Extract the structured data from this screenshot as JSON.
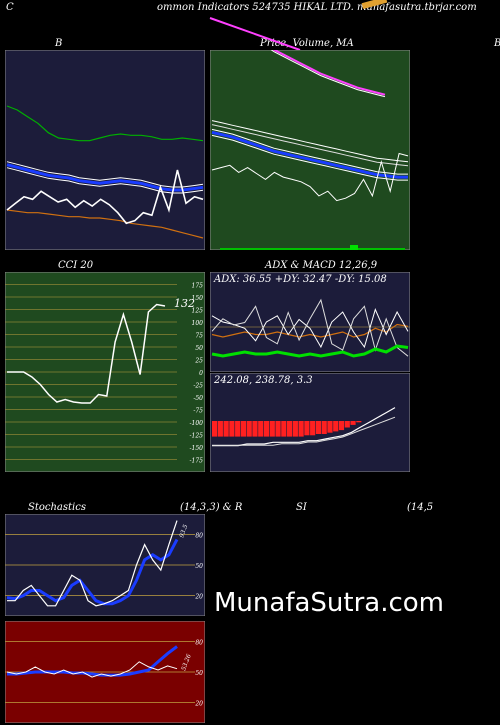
{
  "header": {
    "left": "C",
    "title": "ommon  Indicators 524735 HIKAL  LTD. munafasutra.tbrjar.com"
  },
  "panel_titles": {
    "bollinger": "B",
    "price_ma": "Price,  Volume,  MA",
    "right_edge": "B",
    "cci": "CCI 20",
    "adx_macd": "ADX  & MACD 12,26,9",
    "stoch_left": "Stochastics",
    "stoch_params": "(14,3,3) & R",
    "rsi_label": "SI",
    "rsi_params": "(14,5"
  },
  "readouts": {
    "cci_value": "132",
    "adx_text": "ADX: 36.55  +DY: 32.47  -DY: 15.08",
    "macd_text": "242.08,  238.78,  3.3",
    "stoch_value": "93.5",
    "rsi_value": "53.26"
  },
  "watermark": "MunafaSutra.com",
  "colors": {
    "bollinger_bg": "#1c1c3a",
    "price_bg": "#1f4a1f",
    "cci_bg": "#1f4a1f",
    "adx_bg": "#1c1c3a",
    "stoch_bg": "#1c1c3a",
    "rsi_bg": "#7a0000",
    "band_blue": "#1a3cff",
    "band_green": "#00b000",
    "band_orange": "#d07010",
    "price_magenta": "#ff40ff",
    "grid_orange": "#c0a040",
    "macd_red": "#ff2020"
  },
  "chart_data": [
    {
      "id": "bollinger",
      "type": "line",
      "series": [
        {
          "key": "upper",
          "values": [
            108,
            105,
            100,
            95,
            88,
            84,
            83,
            82,
            82,
            84,
            86,
            87,
            86,
            86,
            85,
            83,
            83,
            84,
            83,
            82
          ]
        },
        {
          "key": "middle",
          "values": [
            64,
            62,
            60,
            58,
            56,
            55,
            54,
            52,
            51,
            50,
            51,
            52,
            51,
            50,
            48,
            46,
            45,
            45,
            46,
            47
          ]
        },
        {
          "key": "lower",
          "values": [
            30,
            29,
            28,
            28,
            27,
            26,
            25,
            25,
            24,
            24,
            23,
            22,
            20,
            19,
            18,
            17,
            15,
            13,
            11,
            9
          ]
        },
        {
          "key": "price",
          "values": [
            30,
            35,
            40,
            38,
            44,
            40,
            36,
            38,
            32,
            37,
            33,
            38,
            34,
            28,
            20,
            22,
            28,
            26,
            47,
            30,
            60,
            35,
            40,
            38
          ]
        }
      ],
      "ylim": [
        0,
        150
      ]
    },
    {
      "id": "price_ma",
      "type": "line",
      "series": [
        {
          "key": "ema_short",
          "values": [
            100,
            98,
            96,
            93,
            90,
            87,
            84,
            82,
            80,
            78,
            76,
            74,
            72,
            70,
            68,
            66,
            64,
            63,
            62,
            62
          ]
        },
        {
          "key": "ema_long",
          "values": [
            110,
            108,
            106,
            104,
            102,
            100,
            98,
            96,
            94,
            92,
            90,
            88,
            86,
            84,
            82,
            80,
            78,
            77,
            76,
            75
          ]
        },
        {
          "key": "price",
          "values": [
            68,
            70,
            72,
            66,
            70,
            65,
            60,
            66,
            62,
            60,
            58,
            54,
            46,
            50,
            42,
            44,
            48,
            60,
            46,
            75,
            50,
            82,
            80
          ]
        },
        {
          "key": "long_ma",
          "values": [
            165,
            160,
            155,
            150,
            145,
            140,
            135,
            130,
            126,
            122,
            118,
            114,
            110,
            107,
            104,
            101,
            98,
            96,
            94,
            92
          ]
        }
      ],
      "ylim": [
        0,
        170
      ]
    },
    {
      "id": "cci",
      "type": "line",
      "values": [
        0,
        0,
        0,
        -10,
        -25,
        -45,
        -60,
        -55,
        -60,
        -62,
        -62,
        -45,
        -48,
        60,
        115,
        60,
        -5,
        120,
        135,
        132
      ],
      "yticks": [
        175,
        150,
        125,
        100,
        75,
        50,
        25,
        0,
        -25,
        -50,
        -75,
        -100,
        -125,
        -150,
        -175
      ],
      "ylim": [
        -200,
        200
      ]
    },
    {
      "id": "adx",
      "type": "line",
      "series": [
        {
          "key": "adx",
          "values": [
            30,
            28,
            30,
            32,
            30,
            30,
            32,
            30,
            28,
            30,
            28,
            30,
            32,
            28,
            30,
            35,
            32,
            38,
            36.55
          ]
        },
        {
          "key": "plus_di",
          "values": [
            45,
            40,
            38,
            35,
            25,
            40,
            45,
            30,
            42,
            35,
            20,
            40,
            48,
            32,
            20,
            50,
            30,
            48,
            32.47
          ]
        },
        {
          "key": "minus_di",
          "values": [
            35,
            45,
            40,
            42,
            55,
            30,
            25,
            50,
            28,
            45,
            60,
            25,
            20,
            45,
            55,
            20,
            45,
            22,
            15.08
          ]
        }
      ],
      "ylim": [
        0,
        80
      ]
    },
    {
      "id": "macd",
      "type": "bar",
      "values": [
        -12,
        -12,
        -12,
        -12,
        -12,
        -12,
        -12,
        -12,
        -12,
        -12,
        -12,
        -12,
        -12,
        -12,
        -12,
        -12,
        -11,
        -11,
        -10,
        -10,
        -9,
        -8,
        -7,
        -5,
        -3,
        -1
      ],
      "macd_line": [
        -14,
        -14,
        -14,
        -14,
        -13,
        -13,
        -13,
        -12,
        -12,
        -12,
        -12,
        -11,
        -11,
        -10,
        -9,
        -8,
        -6,
        -3,
        0,
        3,
        6,
        9
      ],
      "signal_line": [
        -12,
        -12,
        -12,
        -12,
        -12,
        -12,
        -12,
        -12,
        -11,
        -11,
        -11,
        -10,
        -10,
        -9,
        -8,
        -7,
        -5,
        -3,
        -1,
        1,
        3,
        5
      ]
    },
    {
      "id": "stochastics",
      "type": "line",
      "series": [
        {
          "key": "k",
          "values": [
            15,
            15,
            25,
            30,
            20,
            10,
            10,
            25,
            40,
            35,
            15,
            10,
            12,
            15,
            20,
            25,
            50,
            70,
            55,
            45,
            70,
            93.5
          ]
        },
        {
          "key": "d",
          "values": [
            18,
            17,
            20,
            25,
            25,
            20,
            15,
            18,
            30,
            35,
            25,
            15,
            12,
            12,
            15,
            20,
            35,
            55,
            60,
            55,
            60,
            75
          ]
        }
      ],
      "yticks": [
        80,
        50,
        20
      ],
      "ylim": [
        0,
        100
      ]
    },
    {
      "id": "rsi",
      "type": "line",
      "series": [
        {
          "key": "rsi",
          "values": [
            50,
            48,
            50,
            55,
            50,
            48,
            52,
            48,
            50,
            45,
            48,
            46,
            48,
            52,
            60,
            55,
            52,
            56,
            53.26
          ]
        },
        {
          "key": "avg",
          "values": [
            48,
            48,
            49,
            50,
            50,
            50,
            50,
            49,
            49,
            48,
            47,
            47,
            47,
            48,
            50,
            52,
            60,
            68,
            75
          ]
        }
      ],
      "yticks": [
        80,
        50,
        20
      ],
      "ylim": [
        0,
        100
      ]
    }
  ]
}
